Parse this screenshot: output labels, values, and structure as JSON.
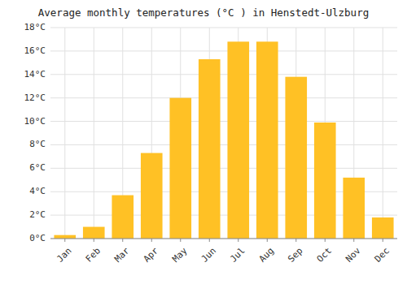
{
  "chart_data": {
    "type": "bar",
    "title": "Average monthly temperatures (°C ) in Henstedt-Ulzburg",
    "categories": [
      "Jan",
      "Feb",
      "Mar",
      "Apr",
      "May",
      "Jun",
      "Jul",
      "Aug",
      "Sep",
      "Oct",
      "Nov",
      "Dec"
    ],
    "values": [
      0.3,
      1.0,
      3.7,
      7.3,
      12.0,
      15.3,
      16.8,
      16.8,
      13.8,
      9.9,
      5.2,
      1.8
    ],
    "color": "#FFC125",
    "ylim": [
      0,
      18
    ],
    "yticks": [
      {
        "value": 0,
        "label": "0°C"
      },
      {
        "value": 2,
        "label": "2°C"
      },
      {
        "value": 4,
        "label": "4°C"
      },
      {
        "value": 6,
        "label": "6°C"
      },
      {
        "value": 8,
        "label": "8°C"
      },
      {
        "value": 10,
        "label": "10°C"
      },
      {
        "value": 12,
        "label": "12°C"
      },
      {
        "value": 14,
        "label": "14°C"
      },
      {
        "value": 16,
        "label": "16°C"
      },
      {
        "value": 18,
        "label": "18°C"
      }
    ],
    "grid": true
  }
}
